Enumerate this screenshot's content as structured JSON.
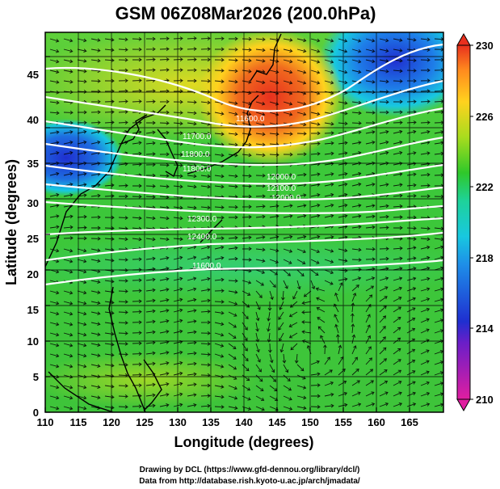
{
  "title": "GSM 06Z08Mar2026 (200.0hPa)",
  "xlabel": "Longitude (degrees)",
  "ylabel": "Latitude  (degrees)",
  "xticks": [
    "110",
    "115",
    "120",
    "125",
    "130",
    "135",
    "140",
    "145",
    "150",
    "155",
    "160",
    "165"
  ],
  "yticks": [
    "0",
    "5",
    "10",
    "15",
    "20",
    "25",
    "30",
    "35",
    "40",
    "45"
  ],
  "colorbar": {
    "ticks": [
      "210",
      "214",
      "218",
      "222",
      "226",
      "230"
    ],
    "colors": [
      "#e01ea0",
      "#1f2fd0",
      "#18c8e0",
      "#2fc82a",
      "#ffd21e",
      "#e8301e"
    ]
  },
  "contour_labels": [
    "11600.0",
    "11700.0",
    "11800.0",
    "11800.0",
    "12000.0",
    "12100.0",
    "12000.0",
    "12300.0",
    "12400.0",
    "11600.0"
  ],
  "credits": {
    "line1": "Drawing by DCL (https://www.gfd-dennou.org/library/dcl/)",
    "line2": "Data from http://database.rish.kyoto-u.ac.jp/arch/jmadata/"
  },
  "chart_data": {
    "type": "heatmap",
    "title": "GSM 06Z08Mar2026 (200.0hPa)",
    "xlabel": "Longitude (degrees)",
    "ylabel": "Latitude  (degrees)",
    "xlim": [
      110,
      170
    ],
    "ylim": [
      0,
      50
    ],
    "colorbar_range": [
      210,
      230
    ],
    "overlays": [
      "geopotential height contours (white)",
      "wind vectors (black arrows)",
      "coastlines"
    ],
    "contour_levels_labeled": [
      11600,
      11700,
      11800,
      12000,
      12100,
      12300,
      12400
    ],
    "temperature_regions": [
      {
        "region": "northwest (110-115E, 32-38N)",
        "value": 215
      },
      {
        "region": "northeast (158-168E, 45-50N)",
        "value": 215
      },
      {
        "region": "north-central (140-150E, 38-48N)",
        "value": 229
      },
      {
        "region": "tropics (0-20N)",
        "value": 222
      }
    ]
  }
}
